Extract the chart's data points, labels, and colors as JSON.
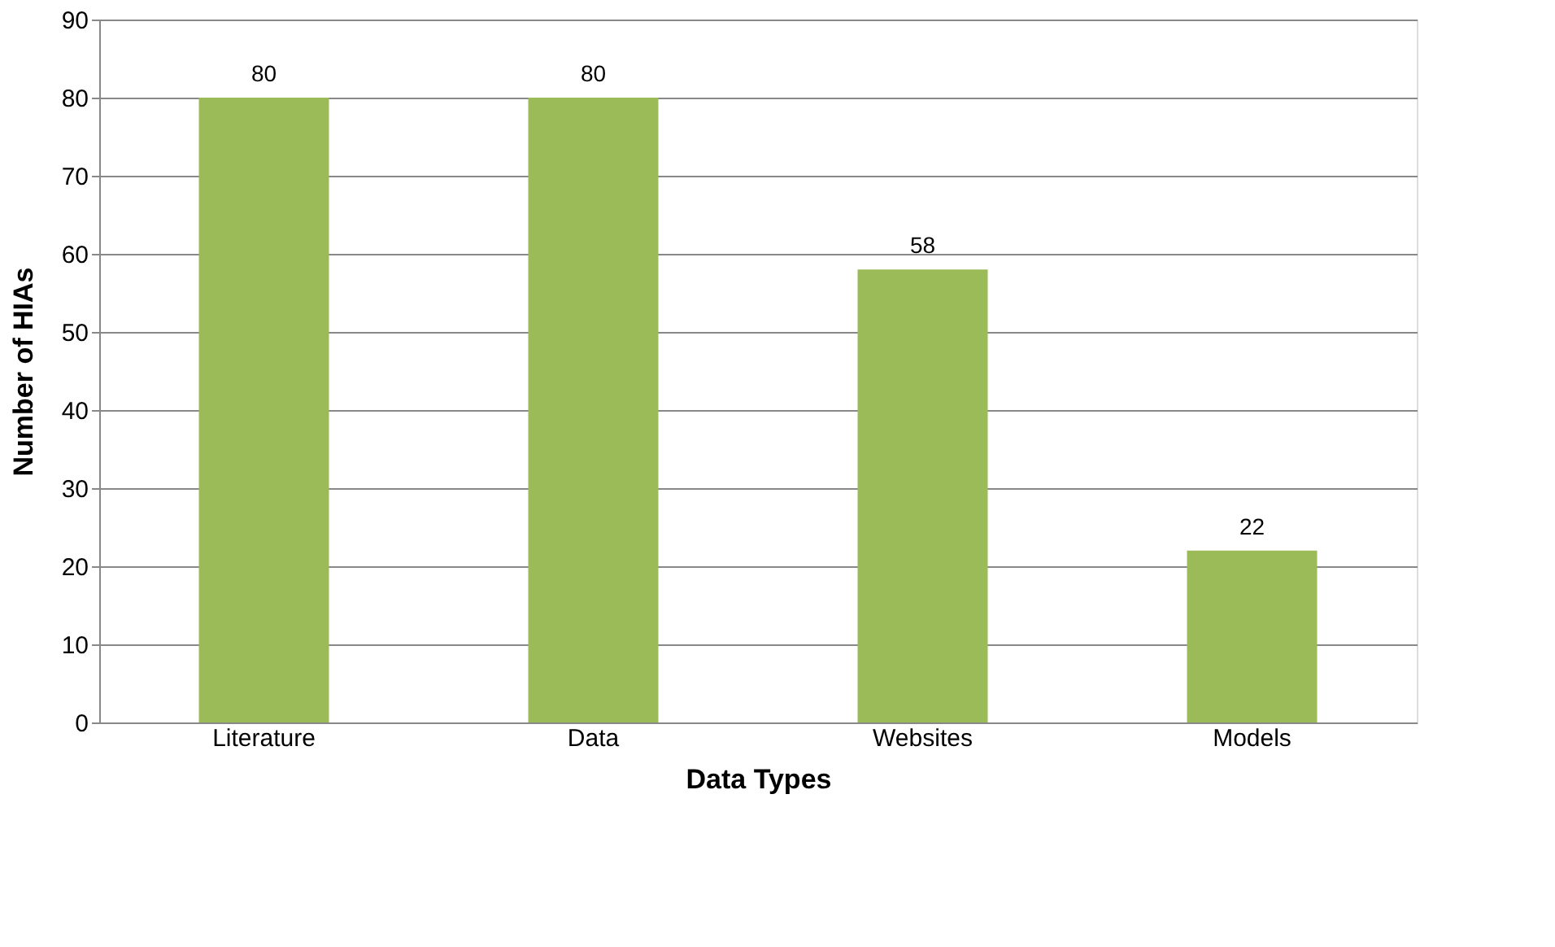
{
  "chart_data": {
    "type": "bar",
    "xlabel": "Data Types",
    "ylabel": "Number of HIAs",
    "categories": [
      "Literature",
      "Data",
      "Websites",
      "Models"
    ],
    "values": [
      80,
      80,
      58,
      22
    ],
    "color": "#9bbb59",
    "ylim": [
      0,
      90
    ],
    "yticks": [
      0,
      10,
      20,
      30,
      40,
      50,
      60,
      70,
      80,
      90
    ],
    "grid": "y",
    "data_labels": true
  }
}
